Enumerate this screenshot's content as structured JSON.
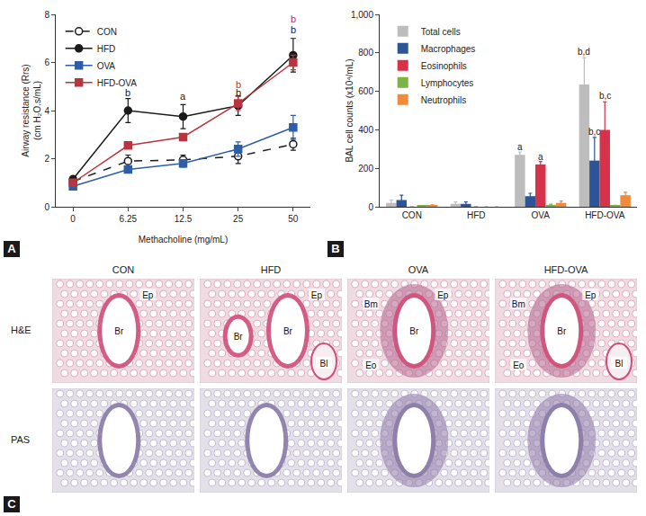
{
  "chart_data": [
    {
      "type": "line",
      "panel": "A",
      "x_label": "Methacholine (mg/mL)",
      "y_label": [
        "Airway resistance (Rrs)",
        "(cm H₂O.s/mL)"
      ],
      "categories": [
        "0",
        "6.25",
        "12.5",
        "25",
        "50"
      ],
      "ylim": [
        0,
        8
      ],
      "yticks": [
        0,
        2,
        4,
        6,
        8
      ],
      "grid": false,
      "legend": "top left",
      "series": [
        {
          "name": "CON",
          "color": "#1a1a1a",
          "marker": "open-circle",
          "line_style": "dashed",
          "values": [
            1.05,
            1.9,
            1.95,
            2.1,
            2.6
          ],
          "errors": [
            0.1,
            0.25,
            0.2,
            0.3,
            0.25
          ]
        },
        {
          "name": "HFD",
          "color": "#1a1a1a",
          "marker": "circle",
          "line_style": "solid",
          "values": [
            1.15,
            4.0,
            3.75,
            4.2,
            6.3
          ],
          "errors": [
            0.1,
            0.5,
            0.5,
            0.4,
            0.7
          ]
        },
        {
          "name": "OVA",
          "color": "#2e5ea8",
          "marker": "square",
          "line_style": "solid",
          "values": [
            0.85,
            1.55,
            1.8,
            2.4,
            3.3
          ],
          "errors": [
            0.05,
            0.1,
            0.15,
            0.3,
            0.5
          ]
        },
        {
          "name": "HFD-OVA",
          "color": "#b8353f",
          "marker": "square",
          "line_style": "solid",
          "values": [
            1.0,
            2.55,
            2.9,
            4.3,
            6.0
          ],
          "errors": [
            0.05,
            0.05,
            0.05,
            0.3,
            0.3
          ]
        }
      ],
      "annotations": [
        {
          "category": "6.25",
          "y": 4.75,
          "text": "b",
          "color": "#1a1a1a"
        },
        {
          "category": "12.5",
          "y": 4.6,
          "text": "a",
          "color": "#1a1a1a"
        },
        {
          "category": "25",
          "y": 5.1,
          "text": "b",
          "color": "#b8353f"
        },
        {
          "category": "25",
          "y": 4.75,
          "text": "b",
          "color": "#1a1a1a"
        },
        {
          "category": "50",
          "y": 7.8,
          "text": "b",
          "color": "#b8353f"
        },
        {
          "category": "50",
          "y": 7.35,
          "text": "b",
          "color": "#1a1a1a"
        }
      ]
    },
    {
      "type": "bar",
      "panel": "B",
      "y_label": [
        "BAL cell counts (x10⁴/mL)"
      ],
      "categories": [
        "CON",
        "HFD",
        "OVA",
        "HFD-OVA"
      ],
      "ylim": [
        0,
        1000
      ],
      "yticks": [
        0,
        200,
        400,
        600,
        800,
        {
          "value": 1000,
          "label": "1,000"
        }
      ],
      "grid": false,
      "legend": "top left",
      "series": [
        {
          "name": "Total cells",
          "color": "#bdbdbd",
          "values": [
            20,
            15,
            270,
            635
          ],
          "errors": [
            15,
            10,
            15,
            140
          ]
        },
        {
          "name": "Macrophages",
          "color": "#2b5597",
          "values": [
            35,
            15,
            55,
            240
          ],
          "errors": [
            25,
            10,
            15,
            120
          ]
        },
        {
          "name": "Eosinophils",
          "color": "#d6324a",
          "values": [
            0,
            0,
            220,
            400
          ],
          "errors": [
            0,
            0,
            15,
            145
          ]
        },
        {
          "name": "Lymphocytes",
          "color": "#7cb342",
          "values": [
            5,
            0,
            10,
            5
          ],
          "errors": [
            0,
            0,
            3,
            3
          ]
        },
        {
          "name": "Neutrophils",
          "color": "#f08a3c",
          "values": [
            5,
            0,
            20,
            60
          ],
          "errors": [
            5,
            0,
            10,
            15
          ]
        }
      ],
      "annotations": [
        {
          "category": "OVA",
          "series": "Total cells",
          "y": 310,
          "text": "a",
          "color": "#1a1a1a"
        },
        {
          "category": "OVA",
          "series": "Eosinophils",
          "y": 260,
          "text": "a",
          "color": "#1a1a1a"
        },
        {
          "category": "HFD-OVA",
          "series": "Total cells",
          "y": 805,
          "text": "b,d",
          "color": "#1a1a1a"
        },
        {
          "category": "HFD-OVA",
          "series": "Macrophages",
          "y": 390,
          "text": "b,c",
          "color": "#1a1a1a"
        },
        {
          "category": "HFD-OVA",
          "series": "Eosinophils",
          "y": 575,
          "text": "b,c",
          "color": "#1a1a1a"
        }
      ]
    }
  ],
  "panel_c": {
    "panel": "C",
    "columns": [
      "CON",
      "HFD",
      "OVA",
      "HFD-OVA"
    ],
    "rows": [
      {
        "stain": "H&E",
        "labels": [
          [
            "Ep",
            "Br"
          ],
          [
            "Ep",
            "Br",
            "Br",
            "Bl"
          ],
          [
            "Ep",
            "Br",
            "Eo",
            "Bm"
          ],
          [
            "Ep",
            "Br",
            "Eo",
            "Bm",
            "Bl"
          ]
        ]
      },
      {
        "stain": "PAS",
        "labels": [
          [],
          [],
          [],
          []
        ]
      }
    ]
  }
}
